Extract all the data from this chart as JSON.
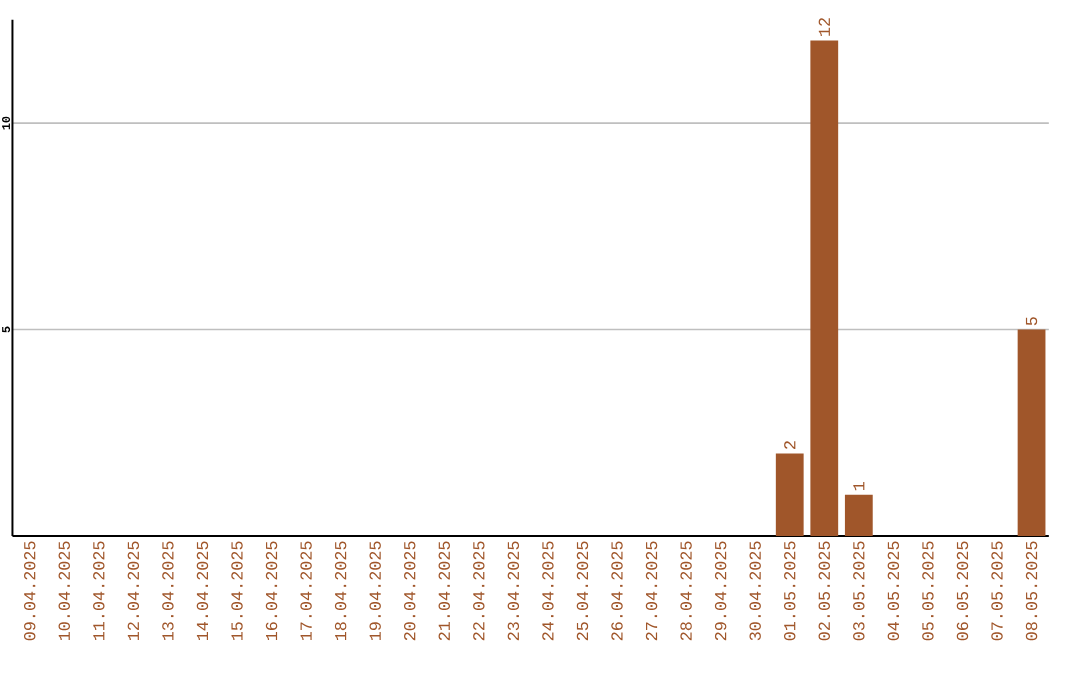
{
  "chart_data": {
    "type": "bar",
    "categories": [
      "09.04.2025",
      "10.04.2025",
      "11.04.2025",
      "12.04.2025",
      "13.04.2025",
      "14.04.2025",
      "15.04.2025",
      "16.04.2025",
      "17.04.2025",
      "18.04.2025",
      "19.04.2025",
      "20.04.2025",
      "21.04.2025",
      "22.04.2025",
      "23.04.2025",
      "24.04.2025",
      "25.04.2025",
      "26.04.2025",
      "27.04.2025",
      "28.04.2025",
      "29.04.2025",
      "30.04.2025",
      "01.05.2025",
      "02.05.2025",
      "03.05.2025",
      "04.05.2025",
      "05.05.2025",
      "06.05.2025",
      "07.05.2025",
      "08.05.2025"
    ],
    "values": [
      0,
      0,
      0,
      0,
      0,
      0,
      0,
      0,
      0,
      0,
      0,
      0,
      0,
      0,
      0,
      0,
      0,
      0,
      0,
      0,
      0,
      0,
      2,
      12,
      1,
      0,
      0,
      0,
      0,
      5
    ],
    "value_labels": [
      null,
      null,
      null,
      null,
      null,
      null,
      null,
      null,
      null,
      null,
      null,
      null,
      null,
      null,
      null,
      null,
      null,
      null,
      null,
      null,
      null,
      null,
      "2",
      "12",
      "1",
      null,
      null,
      null,
      null,
      "5"
    ],
    "color": "#a0562a",
    "ylim": [
      0,
      12.5
    ],
    "yticks": [
      5,
      10
    ],
    "grid": "y"
  }
}
